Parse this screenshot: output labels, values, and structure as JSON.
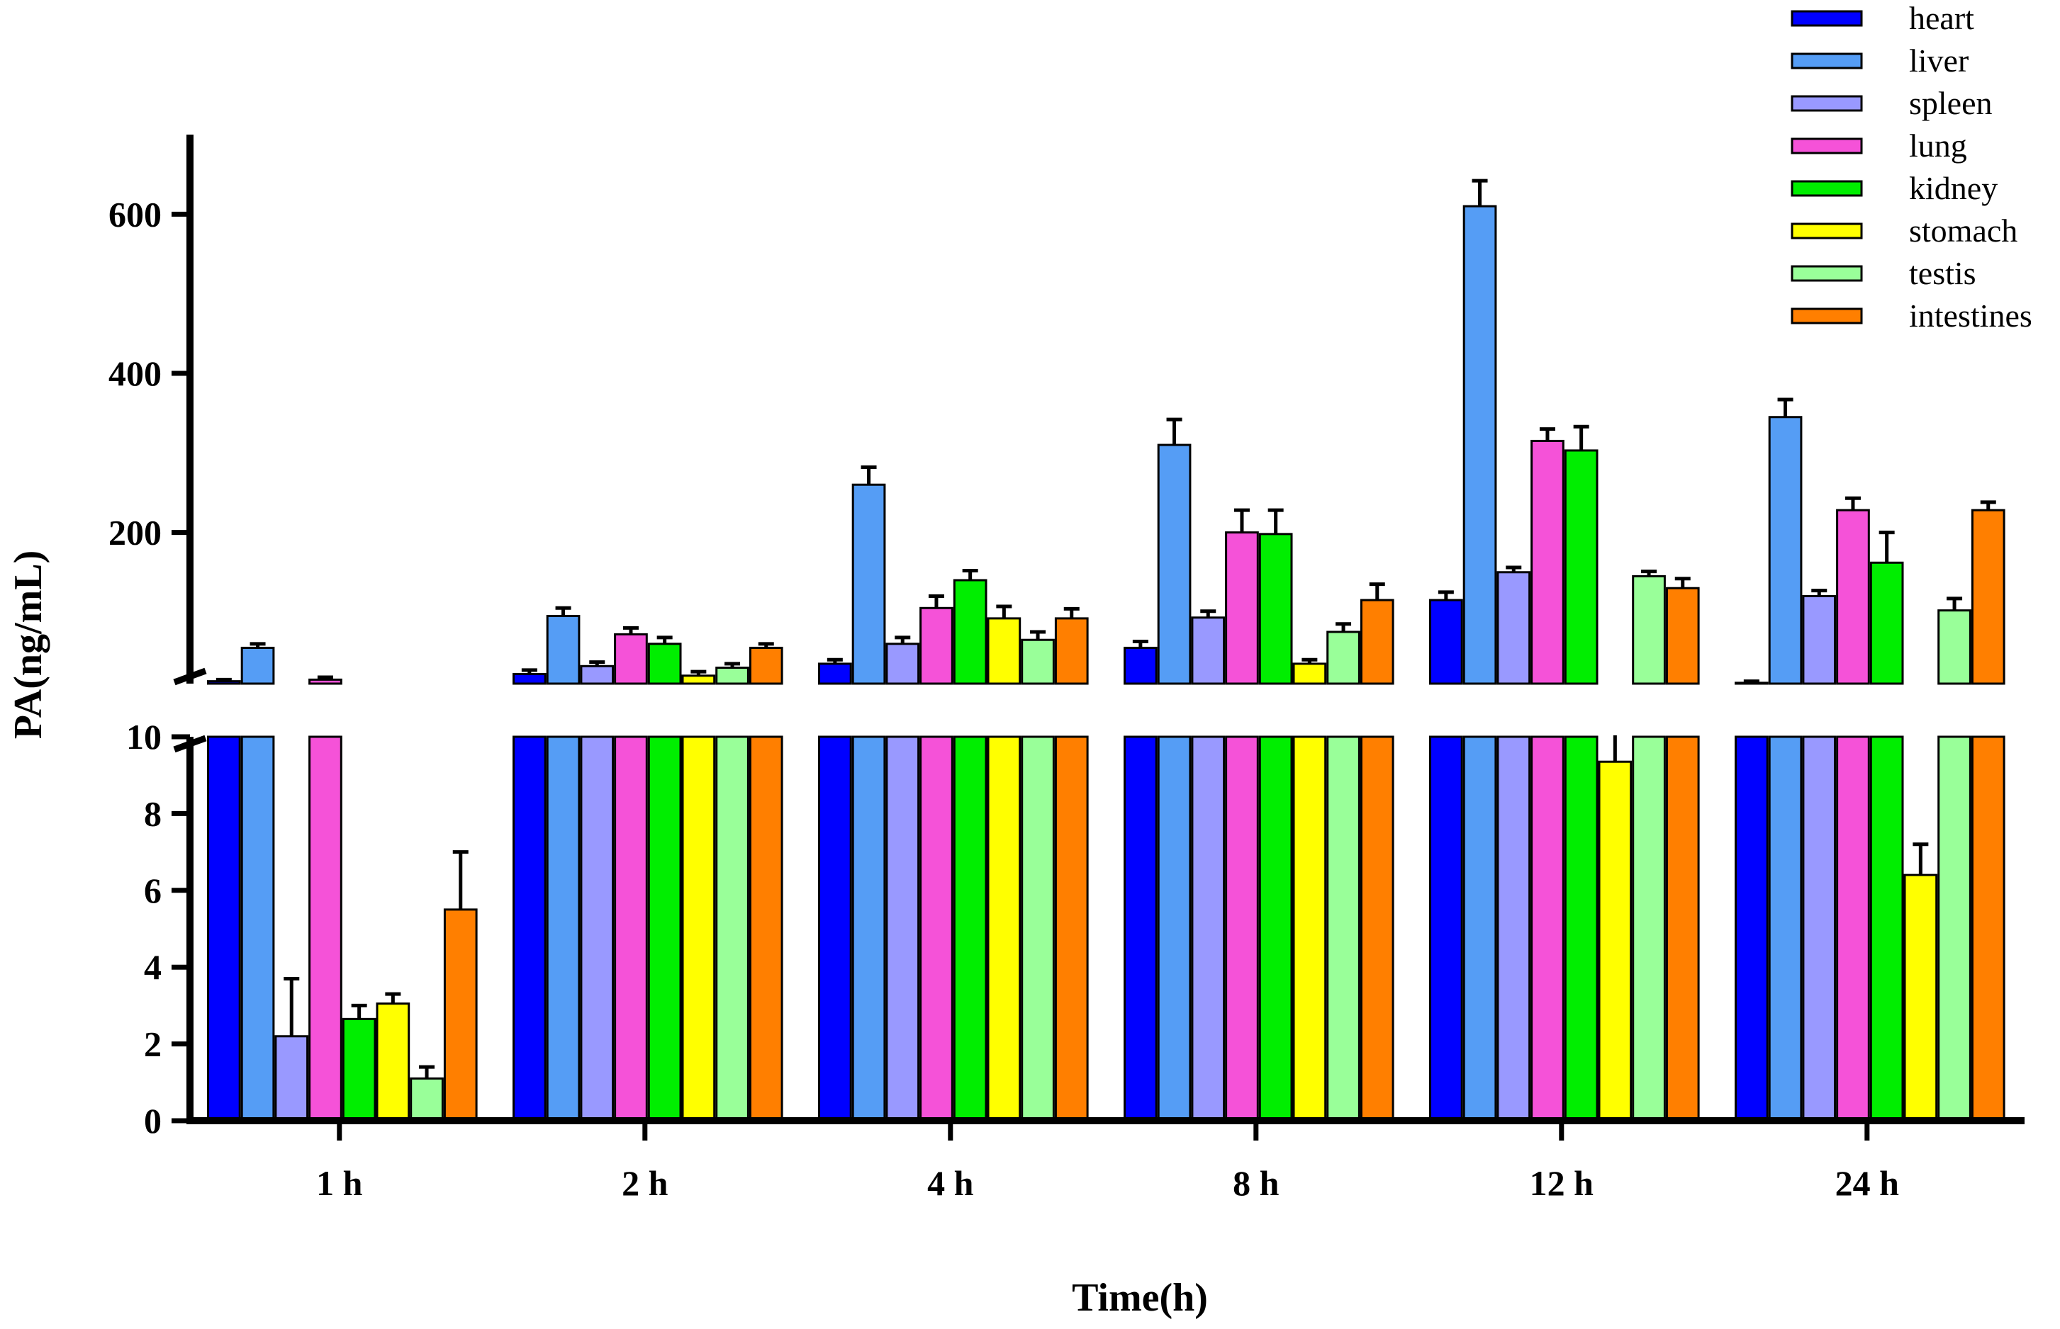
{
  "chart_data": {
    "type": "bar",
    "title": "",
    "xlabel": "Time(h)",
    "ylabel": "PA(ng/mL)",
    "categories": [
      "1 h",
      "2 h",
      "4 h",
      "8 h",
      "12 h",
      "24 h"
    ],
    "y_axis_break": {
      "lower_range": [
        0,
        10
      ],
      "upper_range": [
        10,
        700
      ],
      "lower_ticks": [
        "0",
        "2",
        "4",
        "6",
        "8",
        "10"
      ],
      "upper_ticks": [
        "200",
        "400",
        "600"
      ]
    },
    "legend_position": "top-right",
    "series": [
      {
        "name": "heart",
        "color": "#0000ff",
        "values": [
          13,
          22,
          35,
          55,
          115,
          11
        ],
        "errors": [
          2,
          5,
          5,
          8,
          10,
          2
        ]
      },
      {
        "name": "liver",
        "color": "#559df5",
        "values": [
          55,
          95,
          260,
          310,
          610,
          345
        ],
        "errors": [
          5,
          10,
          22,
          32,
          32,
          22
        ]
      },
      {
        "name": "spleen",
        "color": "#9999ff",
        "values": [
          2.2,
          32,
          60,
          93,
          150,
          120
        ],
        "errors": [
          1.5,
          5,
          8,
          8,
          6,
          7
        ]
      },
      {
        "name": "lung",
        "color": "#f552d8",
        "values": [
          15,
          72,
          105,
          200,
          315,
          228
        ],
        "errors": [
          3,
          8,
          15,
          28,
          15,
          15
        ]
      },
      {
        "name": "kidney",
        "color": "#00ee00",
        "values": [
          2.65,
          60,
          140,
          198,
          303,
          162
        ],
        "errors": [
          0.35,
          8,
          12,
          30,
          30,
          38
        ]
      },
      {
        "name": "stomach",
        "color": "#ffff00",
        "values": [
          3.05,
          20,
          92,
          35,
          9.35,
          6.4
        ],
        "errors": [
          0.25,
          5,
          15,
          5,
          0.9,
          0.8
        ]
      },
      {
        "name": "testis",
        "color": "#99ff99",
        "values": [
          1.1,
          30,
          65,
          75,
          145,
          102
        ],
        "errors": [
          0.3,
          5,
          10,
          10,
          6,
          15
        ]
      },
      {
        "name": "intestines",
        "color": "#ff7f00",
        "values": [
          5.5,
          55,
          92,
          115,
          130,
          228
        ],
        "errors": [
          1.5,
          5,
          12,
          20,
          12,
          10
        ]
      }
    ]
  }
}
